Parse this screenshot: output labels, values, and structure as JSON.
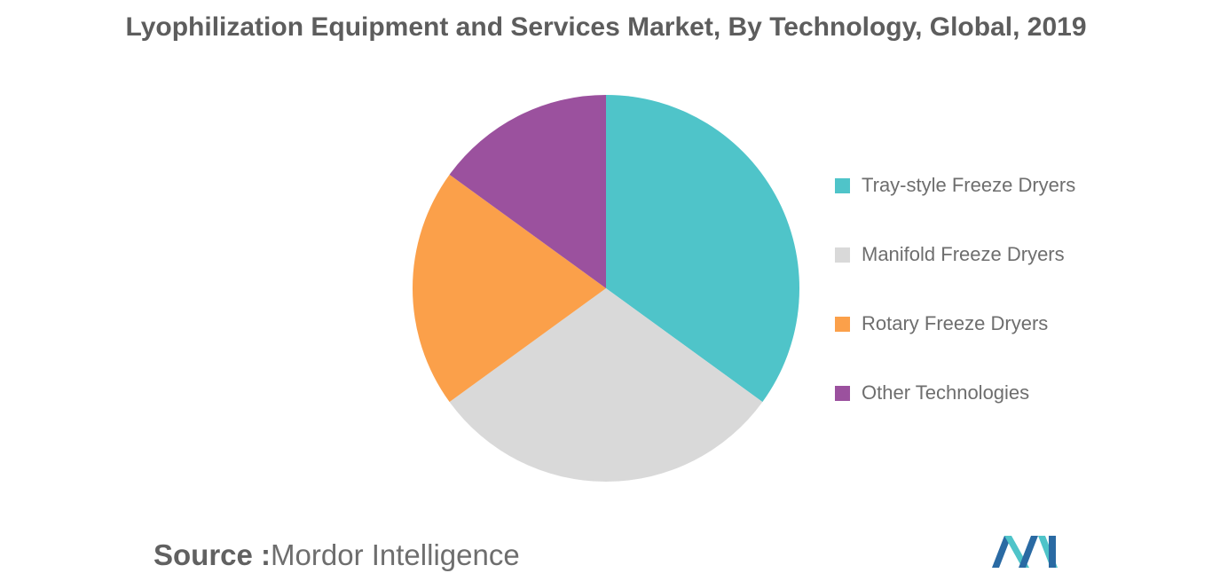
{
  "chart_data": {
    "type": "pie",
    "title": "Lyophilization Equipment and Services Market, By Technology, Global, 2019",
    "categories": [
      "Tray-style Freeze Dryers",
      "Manifold Freeze Dryers",
      "Rotary Freeze Dryers",
      "Other Technologies"
    ],
    "values": [
      35,
      30,
      20,
      15
    ],
    "colors": [
      "#4fc4c9",
      "#d9d9d9",
      "#fba04a",
      "#9b519e"
    ],
    "legend": "right",
    "start_angle": "12 o'clock, clockwise"
  },
  "source": {
    "prefix": "Source :",
    "name": "Mordor Intelligence"
  },
  "logo": {
    "icon": "mordor-intelligence-logo",
    "colors": [
      "#2a6aa3",
      "#4fc4c9"
    ]
  }
}
